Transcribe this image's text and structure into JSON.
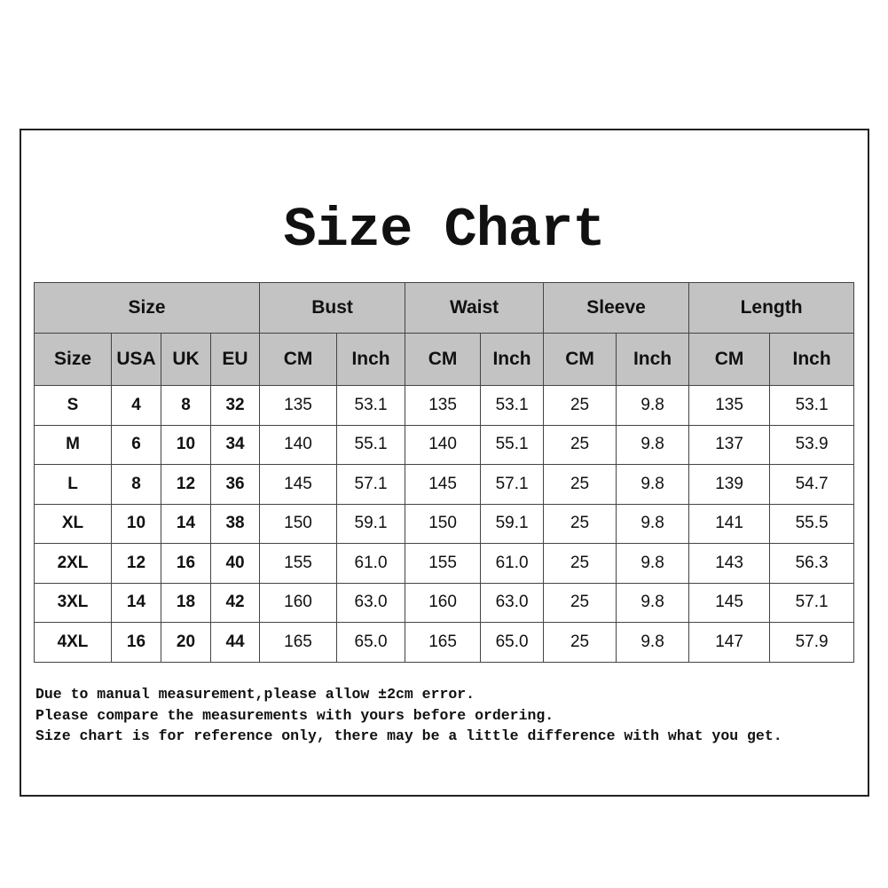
{
  "title": "Size Chart",
  "groups": [
    "Size",
    "Bust",
    "Waist",
    "Sleeve",
    "Length"
  ],
  "subheaders": [
    "Size",
    "USA",
    "UK",
    "EU",
    "CM",
    "Inch",
    "CM",
    "Inch",
    "CM",
    "Inch",
    "CM",
    "Inch"
  ],
  "rows": [
    [
      "S",
      "4",
      "8",
      "32",
      "135",
      "53.1",
      "135",
      "53.1",
      "25",
      "9.8",
      "135",
      "53.1"
    ],
    [
      "M",
      "6",
      "10",
      "34",
      "140",
      "55.1",
      "140",
      "55.1",
      "25",
      "9.8",
      "137",
      "53.9"
    ],
    [
      "L",
      "8",
      "12",
      "36",
      "145",
      "57.1",
      "145",
      "57.1",
      "25",
      "9.8",
      "139",
      "54.7"
    ],
    [
      "XL",
      "10",
      "14",
      "38",
      "150",
      "59.1",
      "150",
      "59.1",
      "25",
      "9.8",
      "141",
      "55.5"
    ],
    [
      "2XL",
      "12",
      "16",
      "40",
      "155",
      "61.0",
      "155",
      "61.0",
      "25",
      "9.8",
      "143",
      "56.3"
    ],
    [
      "3XL",
      "14",
      "18",
      "42",
      "160",
      "63.0",
      "160",
      "63.0",
      "25",
      "9.8",
      "145",
      "57.1"
    ],
    [
      "4XL",
      "16",
      "20",
      "44",
      "165",
      "65.0",
      "165",
      "65.0",
      "25",
      "9.8",
      "147",
      "57.9"
    ]
  ],
  "notes": [
    "Due to manual measurement,please allow ±2cm error.",
    "Please compare the measurements with yours before ordering.",
    "Size chart is for reference only, there may be a little difference with what you get."
  ],
  "colors": {
    "header_bg": "#c3c3c3",
    "border": "#444444"
  }
}
